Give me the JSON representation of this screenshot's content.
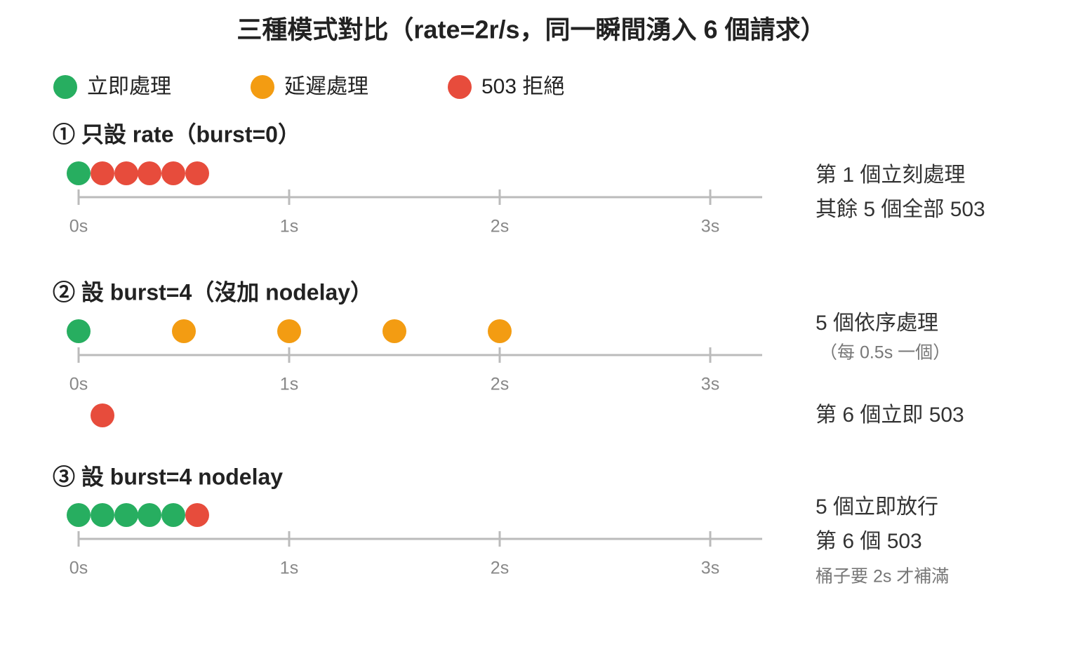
{
  "title": "三種模式對比（rate=2r/s，同一瞬間湧入 6 個請求）",
  "legend": [
    "立即處理",
    "延遲處理",
    "503 拒絕"
  ],
  "sections": [
    {
      "heading": "① 只設 rate（burst=0）",
      "ticks": [
        "0s",
        "1s",
        "2s",
        "3s"
      ],
      "notes": [
        "第 1 個立刻處理",
        "其餘 5 個全部 503"
      ]
    },
    {
      "heading": "② 設 burst=4（沒加 nodelay）",
      "ticks": [
        "0s",
        "1s",
        "2s",
        "3s"
      ],
      "notes": [
        "5 個依序處理",
        "（每 0.5s 一個）",
        "第 6 個立即 503"
      ]
    },
    {
      "heading": "③ 設 burst=4 nodelay",
      "ticks": [
        "0s",
        "1s",
        "2s",
        "3s"
      ],
      "notes": [
        "5 個立即放行",
        "第 6 個 503",
        "桶子要 2s 才補滿"
      ]
    }
  ]
}
